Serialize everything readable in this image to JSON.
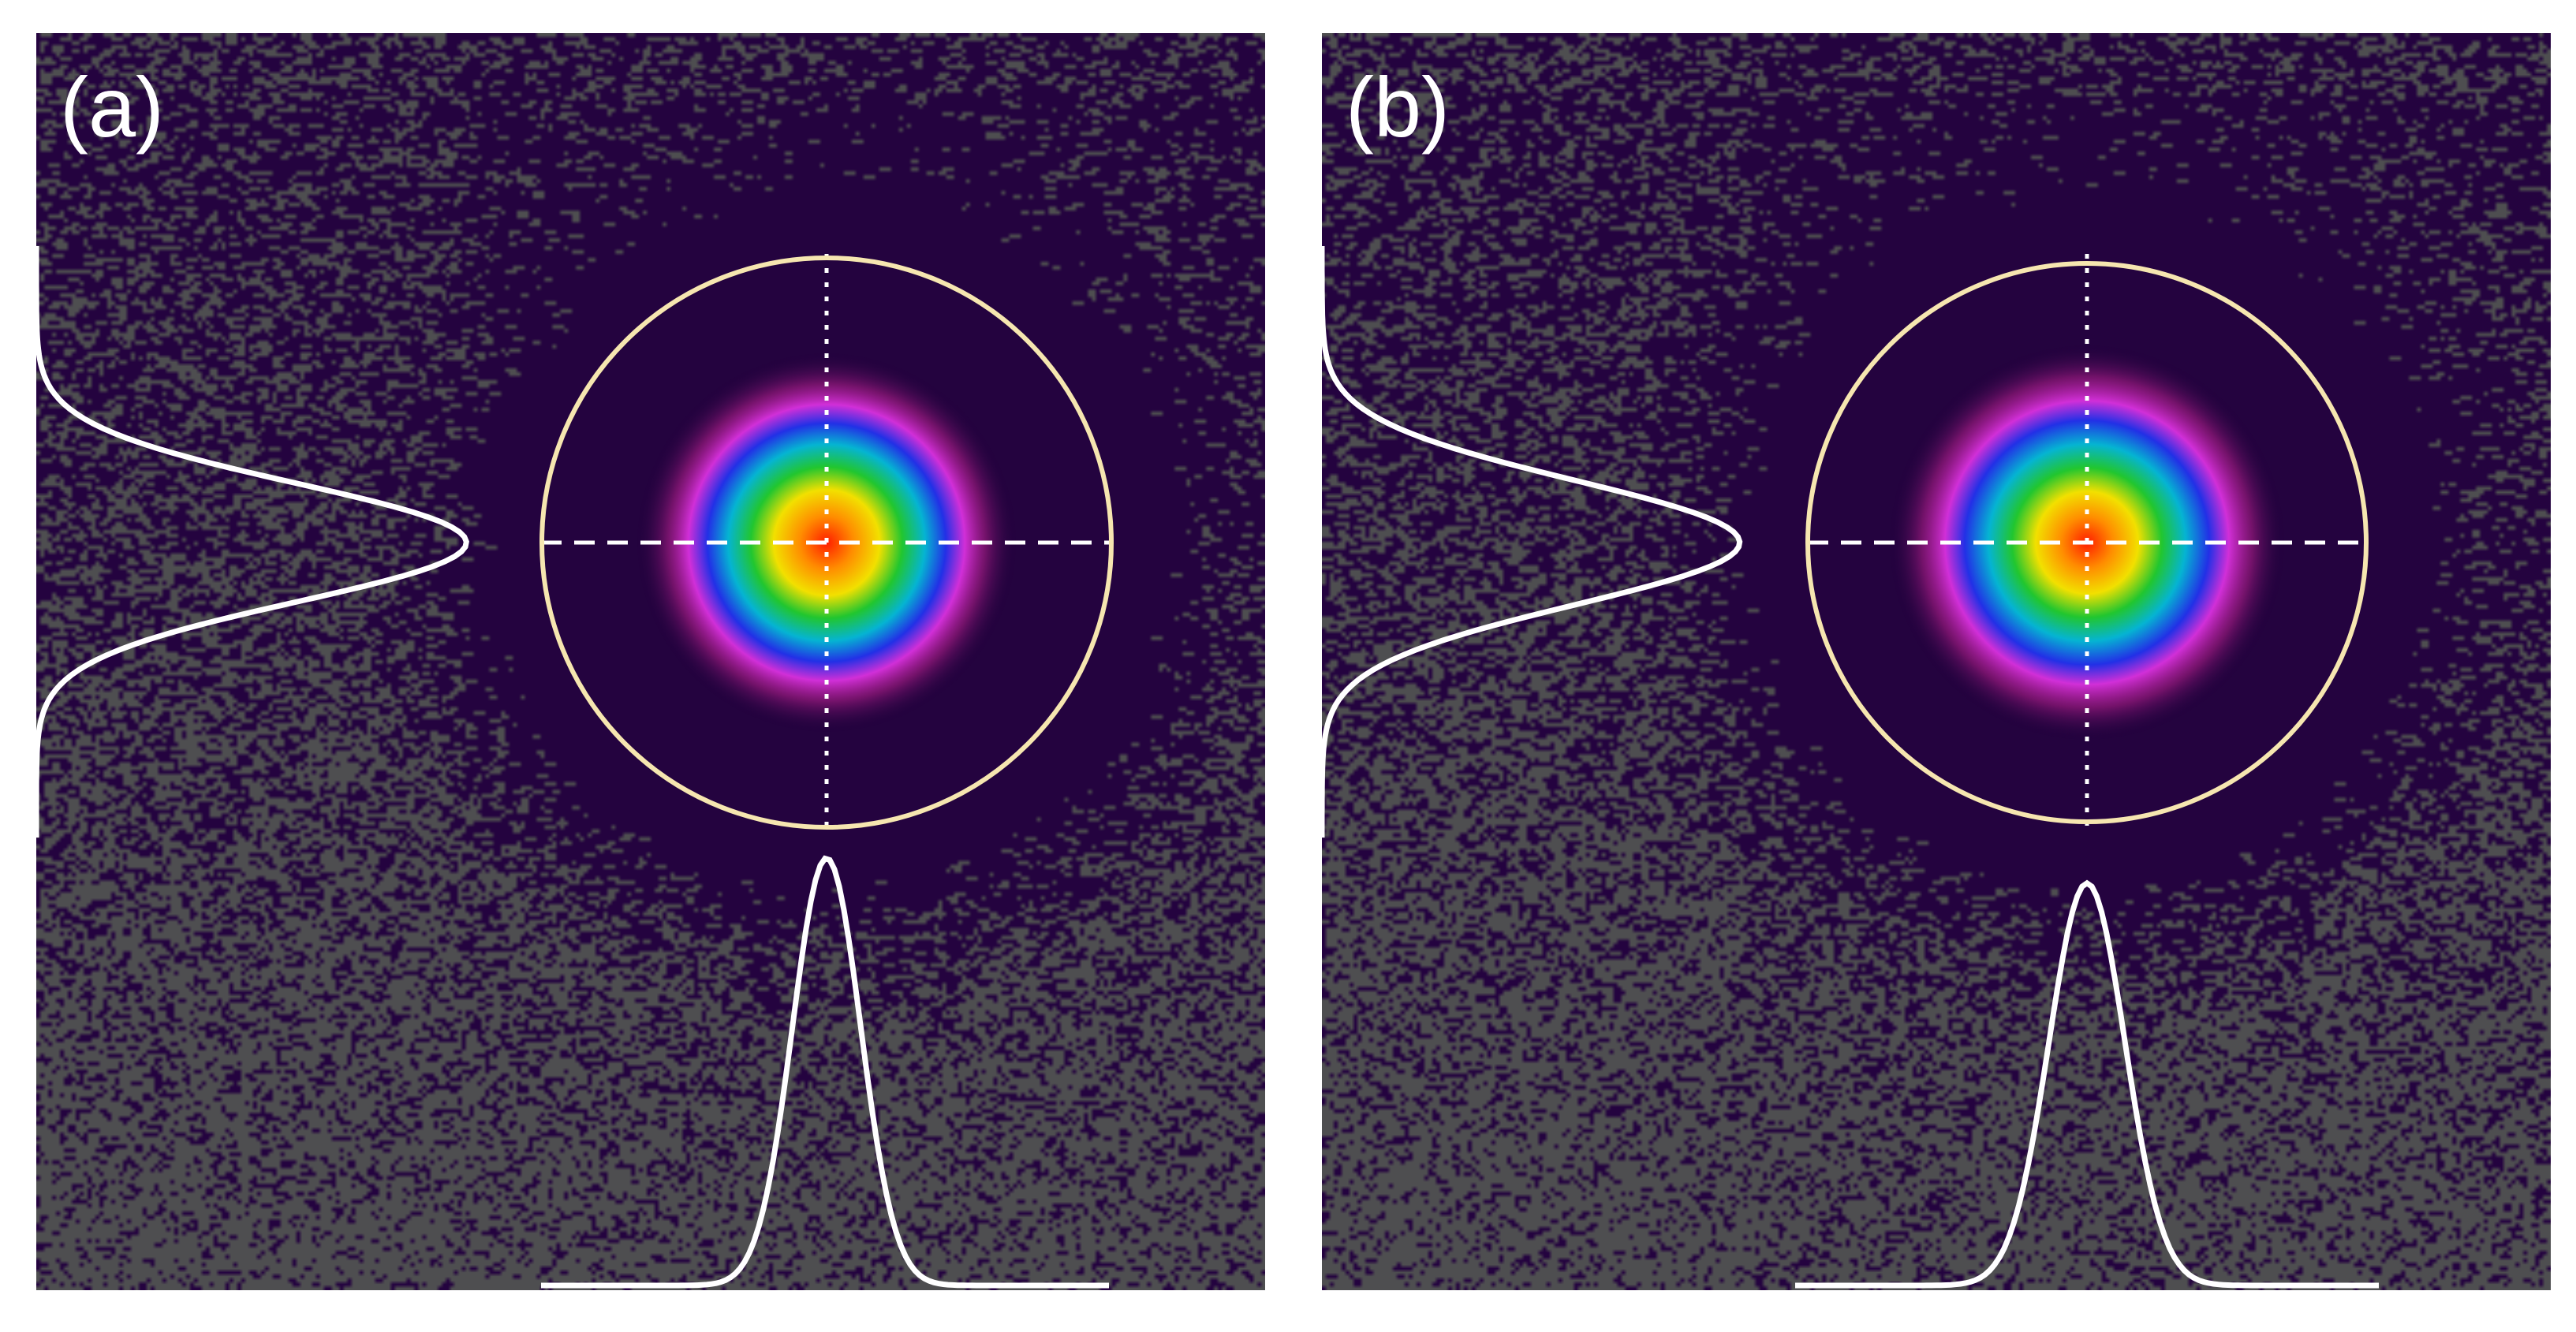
{
  "panels": [
    {
      "label": "(a)",
      "beam": {
        "sigma": 0.18
      },
      "vertical_profile": {
        "peak_fraction": 0.35,
        "sigma": 0.2
      },
      "horizontal_profile": {
        "peak_fraction": 0.34,
        "sigma": 0.12
      }
    },
    {
      "label": "(b)",
      "beam": {
        "sigma": 0.19
      },
      "vertical_profile": {
        "peak_fraction": 0.34,
        "sigma": 0.21
      },
      "horizontal_profile": {
        "peak_fraction": 0.32,
        "sigma": 0.13
      }
    }
  ],
  "colors": {
    "background": "#24033f",
    "noise": "#4e4e50",
    "aperture": "#f6e6b0",
    "crosshair": "#ffffff",
    "profile": "#ffffff"
  }
}
